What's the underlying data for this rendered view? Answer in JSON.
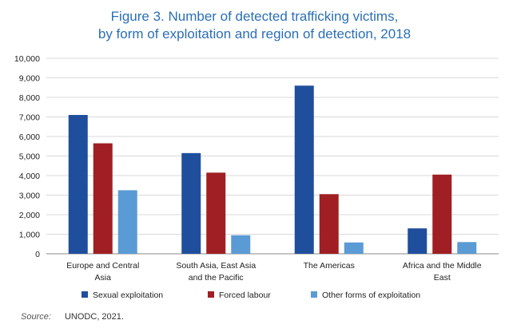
{
  "title_line1": "Figure 3. Number of detected trafficking victims,",
  "title_line2": "by form of exploitation and region of detection, 2018",
  "source_label": "Source:",
  "source_text": "UNODC, 2021.",
  "chart_data": {
    "type": "bar",
    "title": "Figure 3. Number of detected trafficking victims, by form of exploitation and region of detection, 2018",
    "categories": [
      [
        "Europe and Central",
        "Asia"
      ],
      [
        "South Asia, East Asia",
        "and the Pacific"
      ],
      [
        "The Americas"
      ],
      [
        "Africa and the Middle",
        "East"
      ]
    ],
    "series": [
      {
        "name": "Sexual exploitation",
        "color": "#1f4e9c",
        "values": [
          7100,
          5150,
          8600,
          1300
        ]
      },
      {
        "name": "Forced labour",
        "color": "#a01f24",
        "values": [
          5650,
          4150,
          3050,
          4050
        ]
      },
      {
        "name": "Other forms of exploitation",
        "color": "#5b9bd5",
        "values": [
          3250,
          950,
          580,
          600
        ]
      }
    ],
    "ylim": [
      0,
      10000
    ],
    "yticks": [
      "0",
      "1,000",
      "2,000",
      "3,000",
      "4,000",
      "5,000",
      "6,000",
      "7,000",
      "8,000",
      "9,000",
      "10,000"
    ],
    "ytick_values": [
      0,
      1000,
      2000,
      3000,
      4000,
      5000,
      6000,
      7000,
      8000,
      9000,
      10000
    ],
    "grid": true,
    "legend_position": "bottom"
  }
}
